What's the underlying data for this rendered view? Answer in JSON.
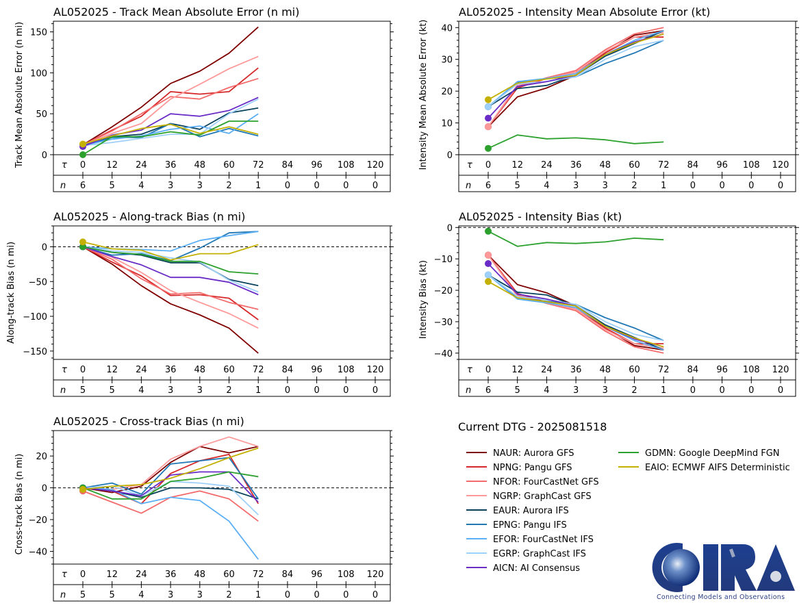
{
  "figure": {
    "dtg_label": "Current DTG - 2025081518",
    "logo_text": "CIRA",
    "logo_tagline": "Connecting Models and Observations"
  },
  "legend": [
    {
      "code": "NAUR",
      "label": "NAUR: Aurora GFS",
      "color": "#7f0000"
    },
    {
      "code": "NPNG",
      "label": "NPNG: Pangu GFS",
      "color": "#d62728"
    },
    {
      "code": "NFOR",
      "label": "NFOR: FourCastNet GFS",
      "color": "#f46a6a"
    },
    {
      "code": "NGRP",
      "label": "NGRP: GraphCast GFS",
      "color": "#ff9999"
    },
    {
      "code": "EAUR",
      "label": "EAUR: Aurora IFS",
      "color": "#08415c"
    },
    {
      "code": "EPNG",
      "label": "EPNG: Pangu IFS",
      "color": "#1f77b4"
    },
    {
      "code": "EFOR",
      "label": "EFOR: FourCastNet IFS",
      "color": "#5aaef5"
    },
    {
      "code": "EGRP",
      "label": "EGRP: GraphCast IFS",
      "color": "#9fd0fa"
    },
    {
      "code": "AICN",
      "label": "AICN: AI Consensus",
      "color": "#6a2cc7"
    },
    {
      "code": "GDMN",
      "label": "GDMN: Google DeepMind FGN",
      "color": "#2ca02c"
    },
    {
      "code": "EAIO",
      "label": "EAIO: ECMWF AIFS Deterministic",
      "color": "#c4b000"
    }
  ],
  "chart_data": [
    {
      "type": "line",
      "title": "AL052025 - Track Mean Absolute Error (n mi)",
      "ylabel": "Track Mean Absolute Error (n mi)",
      "ylim": [
        0,
        163
      ],
      "yticks": [
        0,
        50,
        100,
        150
      ],
      "zero_line": false,
      "x": [
        0,
        12,
        24,
        36,
        48,
        60,
        72
      ],
      "tau_label": "τ",
      "n_label": "n",
      "tau_ticks": [
        "0",
        "12",
        "24",
        "36",
        "48",
        "60",
        "72",
        "84",
        "96",
        "108",
        "120"
      ],
      "n_counts": [
        "6",
        "5",
        "4",
        "3",
        "3",
        "2",
        "1",
        "0",
        "0",
        "0",
        "0"
      ],
      "series": [
        {
          "code": "NAUR",
          "values": [
            12,
            34,
            58,
            87,
            102,
            124,
            156
          ]
        },
        {
          "code": "NPNG",
          "values": [
            12,
            30,
            47,
            77,
            74,
            77,
            106
          ]
        },
        {
          "code": "NFOR",
          "values": [
            12,
            29,
            50,
            71,
            68,
            82,
            93
          ]
        },
        {
          "code": "NGRP",
          "values": [
            12,
            26,
            38,
            68,
            86,
            105,
            120
          ]
        },
        {
          "code": "EAUR",
          "values": [
            11,
            22,
            25,
            38,
            31,
            51,
            57
          ]
        },
        {
          "code": "EPNG",
          "values": [
            11,
            21,
            21,
            38,
            22,
            32,
            23
          ]
        },
        {
          "code": "EFOR",
          "values": [
            11,
            19,
            23,
            31,
            35,
            26,
            50
          ]
        },
        {
          "code": "EGRP",
          "values": [
            11,
            15,
            20,
            25,
            25,
            50,
            68
          ]
        },
        {
          "code": "AICN",
          "values": [
            10,
            24,
            30,
            50,
            47,
            54,
            70
          ]
        },
        {
          "code": "GDMN",
          "values": [
            0,
            22,
            22,
            28,
            24,
            41,
            41
          ]
        },
        {
          "code": "EAIO",
          "values": [
            13,
            23,
            32,
            37,
            26,
            34,
            25
          ]
        }
      ]
    },
    {
      "type": "line",
      "title": "AL052025 - Intensity Mean Absolute Error (kt)",
      "ylabel": "Intensity Mean Absolute Error (kt)",
      "ylim": [
        0,
        42
      ],
      "yticks": [
        0,
        10,
        20,
        30,
        40
      ],
      "zero_line": false,
      "x": [
        0,
        12,
        24,
        36,
        48,
        60,
        72
      ],
      "tau_label": "τ",
      "n_label": "n",
      "tau_ticks": [
        "0",
        "12",
        "24",
        "36",
        "48",
        "60",
        "72",
        "84",
        "96",
        "108",
        "120"
      ],
      "n_counts": [
        "6",
        "5",
        "4",
        "3",
        "3",
        "2",
        "1",
        "0",
        "0",
        "0",
        "0"
      ],
      "series": [
        {
          "code": "NAUR",
          "values": [
            8.8,
            18.2,
            21.0,
            25.0,
            32.0,
            37.6,
            39.0
          ]
        },
        {
          "code": "NPNG",
          "values": [
            8.8,
            21.0,
            24.0,
            26.0,
            32.0,
            37.0,
            37.0
          ]
        },
        {
          "code": "NFOR",
          "values": [
            8.8,
            21.5,
            24.2,
            26.5,
            33.0,
            38.0,
            40.0
          ]
        },
        {
          "code": "NGRP",
          "values": [
            8.8,
            22.0,
            24.0,
            26.0,
            32.5,
            37.0,
            38.5
          ]
        },
        {
          "code": "EAUR",
          "values": [
            15.1,
            20.8,
            21.8,
            25.0,
            31.0,
            35.0,
            39.0
          ]
        },
        {
          "code": "EPNG",
          "values": [
            15.1,
            22.8,
            24.0,
            24.5,
            28.7,
            32.0,
            36.0
          ]
        },
        {
          "code": "EFOR",
          "values": [
            15.1,
            23.0,
            24.0,
            25.5,
            31.5,
            36.0,
            39.0
          ]
        },
        {
          "code": "EGRP",
          "values": [
            15.1,
            22.3,
            23.0,
            24.5,
            30.0,
            34.0,
            36.0
          ]
        },
        {
          "code": "AICN",
          "values": [
            11.5,
            21.5,
            23.0,
            25.0,
            31.5,
            35.5,
            38.0
          ]
        },
        {
          "code": "GDMN",
          "values": [
            2.0,
            6.2,
            5.0,
            5.3,
            4.7,
            3.5,
            4.0
          ]
        },
        {
          "code": "EAIO",
          "values": [
            17.3,
            22.5,
            23.8,
            25.0,
            31.5,
            35.2,
            38.0
          ]
        }
      ]
    },
    {
      "type": "line",
      "title": "AL052025 - Along-track Bias (n mi)",
      "ylabel": "Along-track Bias (n mi)",
      "ylim": [
        -162,
        30
      ],
      "yticks": [
        -150,
        -100,
        -50,
        0
      ],
      "zero_line": true,
      "x": [
        0,
        12,
        24,
        36,
        48,
        60,
        72
      ],
      "tau_label": "τ",
      "n_label": "n",
      "tau_ticks": [
        "0",
        "12",
        "24",
        "36",
        "48",
        "60",
        "72",
        "84",
        "96",
        "108",
        "120"
      ],
      "n_counts": [
        "5",
        "5",
        "4",
        "3",
        "3",
        "2",
        "1",
        "0",
        "0",
        "0",
        "0"
      ],
      "series": [
        {
          "code": "NAUR",
          "values": [
            0,
            -25,
            -56,
            -82,
            -98,
            -117,
            -153
          ]
        },
        {
          "code": "NPNG",
          "values": [
            0,
            -22,
            -42,
            -70,
            -69,
            -74,
            -105
          ]
        },
        {
          "code": "NFOR",
          "values": [
            0,
            -18,
            -46,
            -68,
            -66,
            -80,
            -90
          ]
        },
        {
          "code": "NGRP",
          "values": [
            0,
            -15,
            -37,
            -63,
            -80,
            -96,
            -117
          ]
        },
        {
          "code": "EAUR",
          "values": [
            0,
            -8,
            -12,
            -23,
            -23,
            -47,
            -56
          ]
        },
        {
          "code": "EPNG",
          "values": [
            0,
            -12,
            -10,
            -20,
            -2,
            20,
            22
          ]
        },
        {
          "code": "EFOR",
          "values": [
            0,
            -3,
            -4,
            -6,
            9,
            16,
            22
          ]
        },
        {
          "code": "EGRP",
          "values": [
            0,
            -6,
            -8,
            -16,
            -22,
            -48,
            -65
          ]
        },
        {
          "code": "AICN",
          "values": [
            0,
            -14,
            -26,
            -44,
            -44,
            -51,
            -69
          ]
        },
        {
          "code": "GDMN",
          "values": [
            0,
            -8,
            -11,
            -21,
            -21,
            -36,
            -39
          ]
        },
        {
          "code": "EAIO",
          "values": [
            7,
            -3,
            -5,
            -19,
            -10,
            -10,
            3
          ]
        }
      ]
    },
    {
      "type": "line",
      "title": "AL052025 - Intensity Bias (kt)",
      "ylabel": "Intensity Bias (kt)",
      "ylim": [
        -42,
        0.5
      ],
      "yticks": [
        -40,
        -30,
        -20,
        -10,
        0
      ],
      "zero_line": true,
      "x": [
        0,
        12,
        24,
        36,
        48,
        60,
        72
      ],
      "tau_label": "τ",
      "n_label": "n",
      "tau_ticks": [
        "0",
        "12",
        "24",
        "36",
        "48",
        "60",
        "72",
        "84",
        "96",
        "108",
        "120"
      ],
      "n_counts": [
        "6",
        "5",
        "4",
        "3",
        "3",
        "2",
        "1",
        "0",
        "0",
        "0",
        "0"
      ],
      "series": [
        {
          "code": "NAUR",
          "values": [
            -8.8,
            -18.2,
            -20.8,
            -25.0,
            -32.0,
            -37.6,
            -39.0
          ]
        },
        {
          "code": "NPNG",
          "values": [
            -8.8,
            -21.0,
            -23.8,
            -26.0,
            -32.0,
            -37.0,
            -37.0
          ]
        },
        {
          "code": "NFOR",
          "values": [
            -8.8,
            -21.5,
            -24.2,
            -26.5,
            -33.0,
            -38.0,
            -40.0
          ]
        },
        {
          "code": "NGRP",
          "values": [
            -8.8,
            -22.0,
            -24.0,
            -26.0,
            -32.5,
            -37.0,
            -38.5
          ]
        },
        {
          "code": "EAUR",
          "values": [
            -15.1,
            -20.6,
            -21.5,
            -25.0,
            -31.0,
            -35.0,
            -39.0
          ]
        },
        {
          "code": "EPNG",
          "values": [
            -15.1,
            -22.5,
            -23.5,
            -24.5,
            -28.7,
            -32.0,
            -36.0
          ]
        },
        {
          "code": "EFOR",
          "values": [
            -15.1,
            -22.8,
            -24.0,
            -25.5,
            -31.5,
            -36.0,
            -39.0
          ]
        },
        {
          "code": "EGRP",
          "values": [
            -15.1,
            -22.0,
            -23.0,
            -24.5,
            -30.0,
            -34.0,
            -36.0
          ]
        },
        {
          "code": "AICN",
          "values": [
            -11.5,
            -21.2,
            -22.8,
            -25.0,
            -31.5,
            -35.5,
            -38.0
          ]
        },
        {
          "code": "GDMN",
          "values": [
            -1.2,
            -6.0,
            -4.8,
            -5.1,
            -4.6,
            -3.4,
            -3.9
          ]
        },
        {
          "code": "EAIO",
          "values": [
            -17.2,
            -22.4,
            -23.6,
            -25.0,
            -31.5,
            -35.2,
            -38.0
          ]
        }
      ]
    },
    {
      "type": "line",
      "title": "AL052025 - Cross-track Bias (n mi)",
      "ylabel": "Cross-track Bias (n mi)",
      "ylim": [
        -48,
        36
      ],
      "yticks": [
        -40,
        -20,
        0,
        20
      ],
      "zero_line": true,
      "x": [
        0,
        12,
        24,
        36,
        48,
        60,
        72
      ],
      "tau_label": "τ",
      "n_label": "n",
      "tau_ticks": [
        "0",
        "12",
        "24",
        "36",
        "48",
        "60",
        "72",
        "84",
        "96",
        "108",
        "120"
      ],
      "n_counts": [
        "5",
        "5",
        "4",
        "3",
        "3",
        "2",
        "1",
        "0",
        "0",
        "0",
        "0"
      ],
      "series": [
        {
          "code": "NAUR",
          "values": [
            0,
            -3,
            1,
            16,
            26,
            22,
            26
          ]
        },
        {
          "code": "NPNG",
          "values": [
            0,
            -2,
            -10,
            9,
            17,
            21,
            -10
          ]
        },
        {
          "code": "NFOR",
          "values": [
            -2,
            -9,
            -16,
            -6,
            -2,
            -7,
            -21
          ]
        },
        {
          "code": "NGRP",
          "values": [
            0,
            -1,
            2,
            18,
            26,
            32,
            26
          ]
        },
        {
          "code": "EAUR",
          "values": [
            0,
            -2,
            -6,
            0,
            0,
            -1,
            -7
          ]
        },
        {
          "code": "EPNG",
          "values": [
            0,
            3,
            -4,
            15,
            17,
            19,
            -7
          ]
        },
        {
          "code": "EFOR",
          "values": [
            0,
            -1,
            -10,
            -6,
            -8,
            -21,
            -45
          ]
        },
        {
          "code": "EGRP",
          "values": [
            0,
            1,
            -5,
            4,
            3,
            1,
            -17
          ]
        },
        {
          "code": "AICN",
          "values": [
            0,
            -2,
            -5,
            8,
            10,
            10,
            -9
          ]
        },
        {
          "code": "GDMN",
          "values": [
            0,
            -7,
            -7,
            4,
            6,
            10,
            7
          ]
        },
        {
          "code": "EAIO",
          "values": [
            -1,
            1,
            2,
            6,
            12,
            19,
            25
          ]
        }
      ]
    }
  ]
}
